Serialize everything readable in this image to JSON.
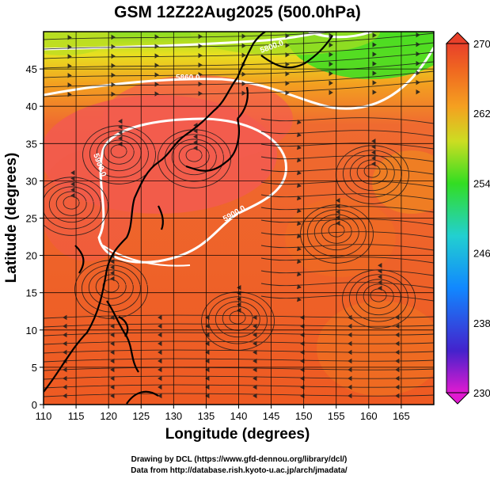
{
  "title": "GSM 12Z22Aug2025 (500.0hPa)",
  "x_axis": {
    "label": "Longitude (degrees)",
    "range": [
      110,
      170
    ],
    "ticks": [
      "110",
      "115",
      "120",
      "125",
      "130",
      "135",
      "140",
      "145",
      "150",
      "155",
      "160",
      "165"
    ]
  },
  "y_axis": {
    "label": "Latitude (degrees)",
    "range": [
      0,
      50
    ],
    "ticks": [
      "0",
      "5",
      "10",
      "15",
      "20",
      "25",
      "30",
      "35",
      "40",
      "45"
    ]
  },
  "colorbar": {
    "range": [
      230,
      270
    ],
    "labels": [
      "270",
      "262",
      "254",
      "246",
      "238",
      "230"
    ]
  },
  "contour_labels": [
    "5860.0",
    "5800.0",
    "5900.0",
    "5900.0"
  ],
  "credits": {
    "line1": "Drawing by DCL (https://www.gfd-dennou.org/library/dcl/)",
    "line2": "Data from http://database.rish.kyoto-u.ac.jp/arch/jmadata/"
  },
  "colors": {
    "warm": "#e8402a",
    "hot": "#f36060",
    "orange": "#f0801f",
    "yellow": "#e8e020",
    "green": "#44dd22",
    "land": "#000000"
  }
}
